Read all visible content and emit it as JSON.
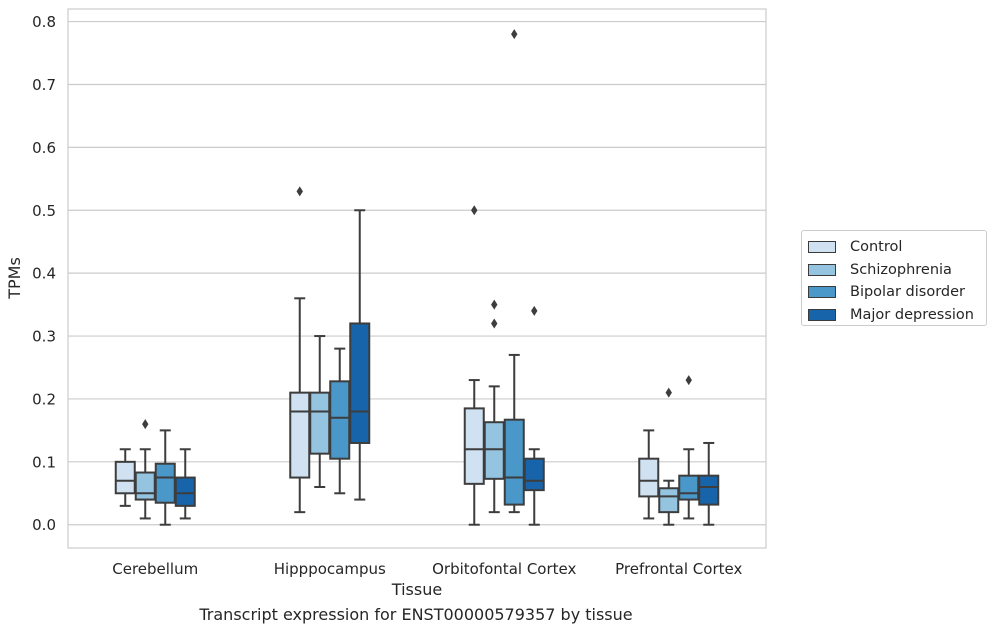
{
  "chart_data": {
    "type": "box",
    "xlabel": "Tissue",
    "ylabel": "TPMs",
    "caption": "Transcript expression for ENST00000579357 by tissue",
    "ylim": [
      -0.037,
      0.82
    ],
    "yticks": [
      0.0,
      0.1,
      0.2,
      0.3,
      0.4,
      0.5,
      0.6,
      0.7,
      0.8
    ],
    "ytick_labels": [
      "0.0",
      "0.1",
      "0.2",
      "0.3",
      "0.4",
      "0.5",
      "0.6",
      "0.7",
      "0.8"
    ],
    "grid": "horizontal",
    "legend_position": "right",
    "categories": [
      "Cerebellum",
      "Hipppocampus",
      "Orbitofontal Cortex",
      "Prefrontal Cortex"
    ],
    "series": [
      {
        "name": "Control",
        "color": "#d0e1f2",
        "boxes": [
          {
            "whisker_low": 0.03,
            "q1": 0.05,
            "median": 0.07,
            "q3": 0.1,
            "whisker_high": 0.12,
            "outliers": []
          },
          {
            "whisker_low": 0.02,
            "q1": 0.075,
            "median": 0.18,
            "q3": 0.21,
            "whisker_high": 0.36,
            "outliers": [
              0.53
            ]
          },
          {
            "whisker_low": 0.0,
            "q1": 0.065,
            "median": 0.12,
            "q3": 0.185,
            "whisker_high": 0.23,
            "outliers": [
              0.5
            ]
          },
          {
            "whisker_low": 0.01,
            "q1": 0.045,
            "median": 0.07,
            "q3": 0.105,
            "whisker_high": 0.15,
            "outliers": []
          }
        ]
      },
      {
        "name": "Schizophrenia",
        "color": "#94c4df",
        "boxes": [
          {
            "whisker_low": 0.01,
            "q1": 0.04,
            "median": 0.05,
            "q3": 0.083,
            "whisker_high": 0.12,
            "outliers": [
              0.16
            ]
          },
          {
            "whisker_low": 0.06,
            "q1": 0.113,
            "median": 0.18,
            "q3": 0.21,
            "whisker_high": 0.3,
            "outliers": []
          },
          {
            "whisker_low": 0.02,
            "q1": 0.073,
            "median": 0.12,
            "q3": 0.163,
            "whisker_high": 0.22,
            "outliers": [
              0.35,
              0.32
            ]
          },
          {
            "whisker_low": 0.0,
            "q1": 0.02,
            "median": 0.045,
            "q3": 0.058,
            "whisker_high": 0.07,
            "outliers": [
              0.21
            ]
          }
        ]
      },
      {
        "name": "Bipolar disorder",
        "color": "#4a98c9",
        "boxes": [
          {
            "whisker_low": 0.0,
            "q1": 0.035,
            "median": 0.075,
            "q3": 0.097,
            "whisker_high": 0.15,
            "outliers": []
          },
          {
            "whisker_low": 0.05,
            "q1": 0.105,
            "median": 0.17,
            "q3": 0.228,
            "whisker_high": 0.28,
            "outliers": []
          },
          {
            "whisker_low": 0.02,
            "q1": 0.032,
            "median": 0.075,
            "q3": 0.167,
            "whisker_high": 0.27,
            "outliers": [
              0.78
            ]
          },
          {
            "whisker_low": 0.01,
            "q1": 0.04,
            "median": 0.05,
            "q3": 0.078,
            "whisker_high": 0.12,
            "outliers": [
              0.23
            ]
          }
        ]
      },
      {
        "name": "Major depression",
        "color": "#1764ab",
        "boxes": [
          {
            "whisker_low": 0.01,
            "q1": 0.03,
            "median": 0.05,
            "q3": 0.075,
            "whisker_high": 0.12,
            "outliers": []
          },
          {
            "whisker_low": 0.04,
            "q1": 0.13,
            "median": 0.18,
            "q3": 0.32,
            "whisker_high": 0.5,
            "outliers": []
          },
          {
            "whisker_low": 0.0,
            "q1": 0.055,
            "median": 0.07,
            "q3": 0.105,
            "whisker_high": 0.12,
            "outliers": [
              0.34
            ]
          },
          {
            "whisker_low": 0.0,
            "q1": 0.032,
            "median": 0.06,
            "q3": 0.078,
            "whisker_high": 0.13,
            "outliers": []
          }
        ]
      }
    ]
  }
}
